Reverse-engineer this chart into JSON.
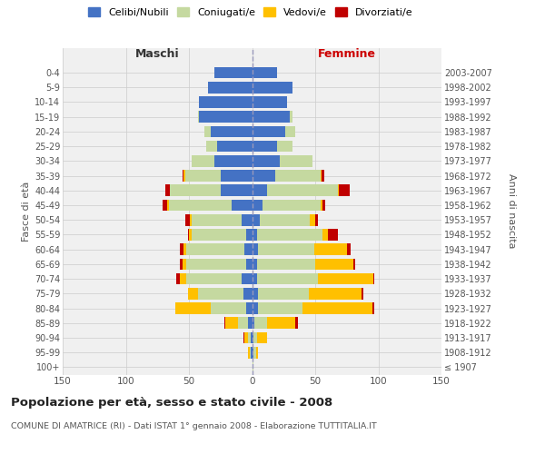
{
  "age_groups": [
    "100+",
    "95-99",
    "90-94",
    "85-89",
    "80-84",
    "75-79",
    "70-74",
    "65-69",
    "60-64",
    "55-59",
    "50-54",
    "45-49",
    "40-44",
    "35-39",
    "30-34",
    "25-29",
    "20-24",
    "15-19",
    "10-14",
    "5-9",
    "0-4"
  ],
  "birth_years": [
    "≤ 1907",
    "1908-1912",
    "1913-1917",
    "1918-1922",
    "1923-1927",
    "1928-1932",
    "1933-1937",
    "1938-1942",
    "1943-1947",
    "1948-1952",
    "1953-1957",
    "1958-1962",
    "1963-1967",
    "1968-1972",
    "1973-1977",
    "1978-1982",
    "1983-1987",
    "1988-1992",
    "1993-1997",
    "1998-2002",
    "2003-2007"
  ],
  "males": {
    "celibe": [
      0,
      1,
      1,
      3,
      5,
      7,
      8,
      5,
      6,
      5,
      8,
      16,
      25,
      25,
      30,
      28,
      33,
      42,
      42,
      35,
      30
    ],
    "coniugato": [
      0,
      1,
      2,
      8,
      28,
      36,
      44,
      47,
      46,
      43,
      40,
      50,
      40,
      28,
      18,
      8,
      5,
      1,
      0,
      0,
      0
    ],
    "vedovo": [
      0,
      1,
      3,
      10,
      28,
      8,
      5,
      3,
      2,
      2,
      1,
      1,
      0,
      1,
      0,
      0,
      0,
      0,
      0,
      0,
      0
    ],
    "divorziato": [
      0,
      0,
      1,
      1,
      0,
      0,
      3,
      2,
      3,
      1,
      4,
      4,
      4,
      1,
      0,
      0,
      0,
      0,
      0,
      0,
      0
    ]
  },
  "females": {
    "nubile": [
      0,
      1,
      1,
      2,
      5,
      5,
      4,
      4,
      5,
      4,
      6,
      8,
      12,
      18,
      22,
      20,
      26,
      30,
      28,
      32,
      20
    ],
    "coniugata": [
      1,
      2,
      3,
      10,
      35,
      40,
      48,
      46,
      44,
      52,
      40,
      46,
      56,
      36,
      26,
      12,
      8,
      2,
      0,
      0,
      0
    ],
    "vedova": [
      0,
      2,
      8,
      22,
      55,
      42,
      44,
      30,
      26,
      4,
      4,
      2,
      1,
      1,
      0,
      0,
      0,
      0,
      0,
      0,
      0
    ],
    "divorziata": [
      0,
      0,
      0,
      2,
      2,
      1,
      1,
      2,
      3,
      8,
      2,
      2,
      8,
      2,
      0,
      0,
      0,
      0,
      0,
      0,
      0
    ]
  },
  "colors": {
    "celibe": "#4472c4",
    "coniugato": "#c5d9a0",
    "vedovo": "#ffc000",
    "divorziato": "#c00000"
  },
  "xlim": 150,
  "title": "Popolazione per età, sesso e stato civile - 2008",
  "subtitle": "COMUNE DI AMATRICE (RI) - Dati ISTAT 1° gennaio 2008 - Elaborazione TUTTITALIA.IT",
  "ylabel": "Fasce di età",
  "right_ylabel": "Anni di nascita",
  "legend_labels": [
    "Celibi/Nubili",
    "Coniugati/e",
    "Vedovi/e",
    "Divorziati/e"
  ],
  "maschi_label": "Maschi",
  "femmine_label": "Femmine",
  "bg_color": "#ffffff",
  "plot_bg": "#f0f0f0",
  "grid_color": "#cccccc"
}
